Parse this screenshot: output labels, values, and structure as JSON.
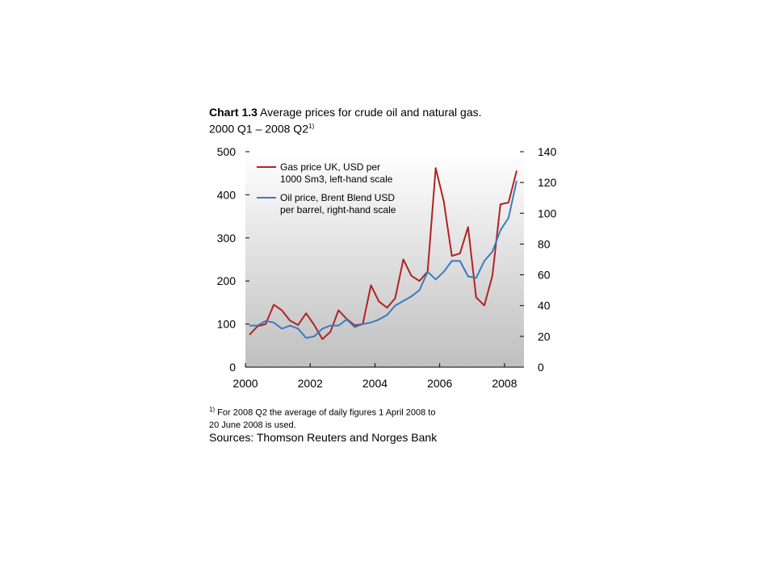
{
  "title": {
    "number": "Chart 1.3",
    "text": " Average prices for crude oil and natural gas.",
    "line2": "2000 Q1 – 2008 Q2",
    "sup": "1)"
  },
  "footnote": {
    "marker": "1)",
    "line1": " For 2008 Q2 the average of daily figures 1 April 2008 to",
    "line2": "20 June 2008 is used."
  },
  "sources": "Sources: Thomson Reuters and Norges Bank",
  "colors": {
    "gas": "#b22222",
    "oil": "#3a7bbf",
    "plot_top": "#ffffff",
    "plot_bottom": "#bfbfbf"
  },
  "chart_data": {
    "type": "line",
    "x_ticks": [
      "2000",
      "2002",
      "2004",
      "2006",
      "2008"
    ],
    "xlim": [
      2000,
      2008.6
    ],
    "ylim_left": [
      0,
      500
    ],
    "ylim_right": [
      0,
      140
    ],
    "y_ticks_left": [
      "0",
      "100",
      "200",
      "300",
      "400",
      "500"
    ],
    "y_ticks_right": [
      "0",
      "20",
      "40",
      "60",
      "80",
      "100",
      "120",
      "140"
    ],
    "legend": [
      {
        "line1": "Gas price UK, USD per",
        "line2": "1000 Sm3, left-hand scale"
      },
      {
        "line1": "Oil price, Brent Blend USD",
        "line2": "per barrel, right-hand scale"
      }
    ],
    "x": [
      "2000 Q1",
      "2000 Q2",
      "2000 Q3",
      "2000 Q4",
      "2001 Q1",
      "2001 Q2",
      "2001 Q3",
      "2001 Q4",
      "2002 Q1",
      "2002 Q2",
      "2002 Q3",
      "2002 Q4",
      "2003 Q1",
      "2003 Q2",
      "2003 Q3",
      "2003 Q4",
      "2004 Q1",
      "2004 Q2",
      "2004 Q3",
      "2004 Q4",
      "2005 Q1",
      "2005 Q2",
      "2005 Q3",
      "2005 Q4",
      "2006 Q1",
      "2006 Q2",
      "2006 Q3",
      "2006 Q4",
      "2007 Q1",
      "2007 Q2",
      "2007 Q3",
      "2007 Q4",
      "2008 Q1",
      "2008 Q2"
    ],
    "series": [
      {
        "axis": "left",
        "values": [
          75,
          95,
          100,
          145,
          132,
          108,
          98,
          125,
          98,
          65,
          82,
          132,
          112,
          97,
          100,
          190,
          152,
          138,
          160,
          250,
          212,
          200,
          222,
          462,
          385,
          258,
          264,
          325,
          162,
          143,
          212,
          378,
          382,
          456
        ]
      },
      {
        "axis": "right",
        "values": [
          27,
          27,
          30,
          29,
          25,
          27,
          25,
          19,
          20,
          25,
          27,
          27,
          31,
          26,
          28,
          29,
          31,
          34,
          40,
          43,
          46,
          50,
          62,
          57,
          62,
          69,
          69,
          59,
          58,
          69,
          75,
          89,
          97,
          121
        ]
      }
    ]
  }
}
